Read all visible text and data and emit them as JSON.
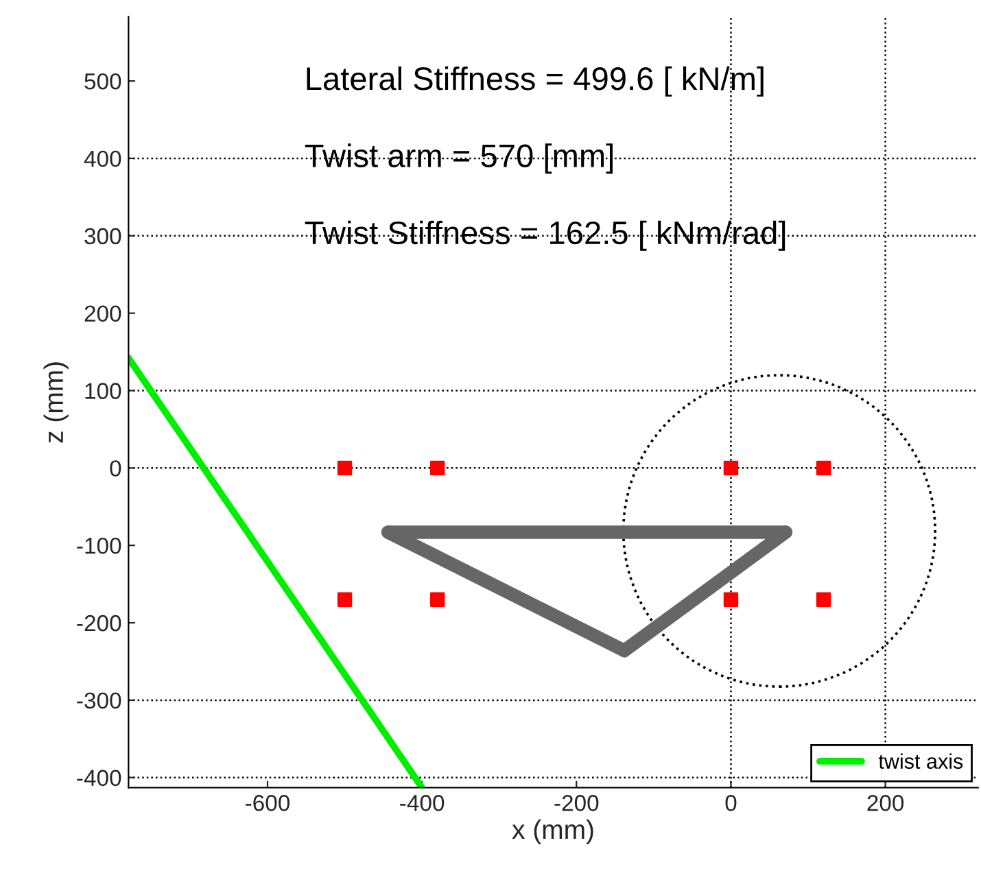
{
  "chart_data": {
    "type": "line",
    "xlabel": "x (mm)",
    "ylabel": "z (mm)",
    "xlim": [
      -780,
      320
    ],
    "ylim": [
      -413,
      583
    ],
    "xticks": [
      -600,
      -400,
      -200,
      0,
      200
    ],
    "yticks": [
      -400,
      -300,
      -200,
      -100,
      0,
      100,
      200,
      300,
      400,
      500
    ],
    "grid": false,
    "legend": "bottom right",
    "series": [
      {
        "name": "twist axis",
        "color": "#00ee00",
        "x": [
          -780,
          -400
        ],
        "values": [
          142,
          -413
        ]
      },
      {
        "type": "line",
        "color": "#666666",
        "x": [
          -444,
          71
        ],
        "values": [
          -83,
          -83
        ]
      },
      {
        "type": "line",
        "color": "#666666",
        "x": [
          -444,
          -138
        ],
        "values": [
          -83,
          -236
        ]
      },
      {
        "type": "line",
        "color": "#666666",
        "x": [
          -138,
          71
        ],
        "values": [
          -236,
          -83
        ]
      },
      {
        "type": "scatter",
        "color": "#ff0000",
        "marker": "square",
        "x": [
          -500,
          -380,
          0,
          120,
          -500,
          -380,
          0,
          120
        ],
        "values": [
          0,
          0,
          0,
          0,
          -170,
          -170,
          -170,
          -170
        ]
      }
    ],
    "ref_lines": [
      {
        "axis": "y",
        "value": 400,
        "color": "#000000",
        "line_style": "dotted"
      },
      {
        "axis": "y",
        "value": 300,
        "color": "#000000",
        "line_style": "dotted"
      },
      {
        "axis": "y",
        "value": 100,
        "color": "#000000",
        "line_style": "dotted"
      },
      {
        "axis": "y",
        "value": 0,
        "color": "#000000",
        "line_style": "dotted"
      },
      {
        "axis": "y",
        "value": -300,
        "color": "#000000",
        "line_style": "dotted"
      },
      {
        "axis": "y",
        "value": -400,
        "color": "#000000",
        "line_style": "dotted"
      },
      {
        "axis": "x",
        "value": 0,
        "color": "#000000",
        "line_style": "dotted"
      },
      {
        "axis": "x",
        "value": 200,
        "color": "#000000",
        "line_style": "dotted"
      }
    ],
    "annotations": [
      "Lateral Stiffness = 499.6 [ kN/m]",
      "Twist arm = 570 [mm]",
      "Twist Stiffness = 162.5 [ kNm/rad]"
    ]
  }
}
